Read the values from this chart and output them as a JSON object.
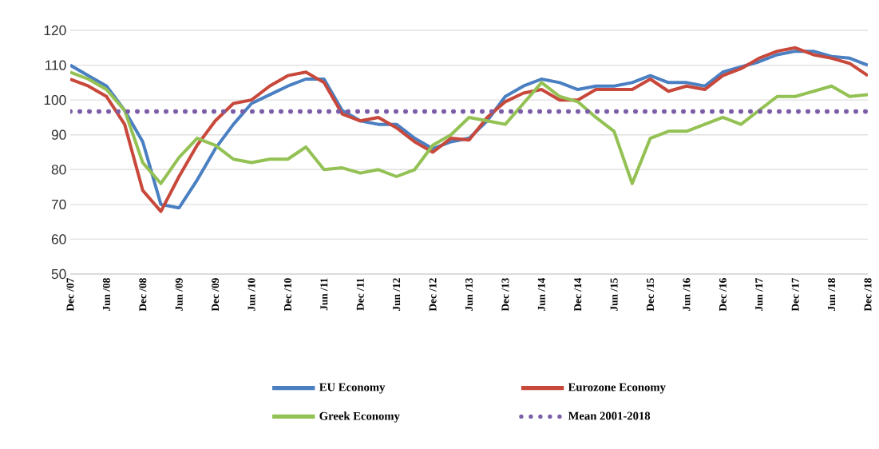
{
  "chart_data": {
    "type": "line",
    "categories": [
      "Dec /07",
      null,
      "Jun /08",
      null,
      "Dec /08",
      null,
      "Jun /09",
      null,
      "Dec /09",
      null,
      "Jun /10",
      null,
      "Dec /10",
      null,
      "Jun /11",
      null,
      "Dec /11",
      null,
      "Jun /12",
      null,
      "Dec /12",
      null,
      "Jun /13",
      null,
      "Dec /13",
      null,
      "Jun /14",
      null,
      "Dec /14",
      null,
      "Jun /15",
      null,
      "Dec /15",
      null,
      "Jun /16",
      null,
      "Dec /16",
      null,
      "Jun /17",
      null,
      "Dec /17",
      null,
      "Jun /18",
      null,
      "Dec /18"
    ],
    "series": [
      {
        "name": "EU Economy",
        "color": "#4a7fc1",
        "values": [
          110,
          107,
          104,
          97,
          88,
          70,
          69,
          77,
          86,
          93,
          99,
          101.5,
          104,
          106,
          106,
          97,
          94,
          93,
          93,
          89,
          86,
          88,
          89,
          94,
          101,
          104,
          106,
          105,
          103,
          104,
          104,
          105,
          107,
          105,
          105,
          104,
          108,
          109.5,
          111,
          113,
          114,
          114,
          112.5,
          112,
          110
        ]
      },
      {
        "name": "Eurozone Economy",
        "color": "#c8483b",
        "values": [
          106,
          104,
          101,
          93,
          74,
          68,
          78,
          87,
          94,
          99,
          100,
          104,
          107,
          108,
          105,
          96,
          94,
          95,
          92,
          88,
          85,
          89,
          88.5,
          95,
          99.5,
          102,
          103,
          100,
          100,
          103,
          103,
          103,
          106,
          102.5,
          104,
          103,
          107,
          109,
          112,
          114,
          115,
          113,
          112,
          110.5,
          107
        ]
      },
      {
        "name": "Greek Economy",
        "color": "#93c153",
        "values": [
          108,
          106,
          103,
          97,
          82,
          76,
          83.5,
          89,
          87,
          83,
          82,
          83,
          83,
          86.5,
          80,
          80.5,
          79,
          80,
          78,
          80,
          87,
          90,
          95,
          94,
          93,
          99,
          105,
          101,
          99.5,
          95,
          91,
          76,
          89,
          91,
          91,
          93,
          95,
          93,
          97,
          101,
          101,
          102.5,
          104,
          101,
          101.5
        ]
      }
    ],
    "ref_lines": [
      {
        "axis": "y",
        "value": 96.7,
        "label": "Mean 2001-2018",
        "color": "#7b5ea7",
        "line_style": "dotted"
      }
    ],
    "ylim": [
      50,
      120
    ],
    "yticks": [
      50,
      60,
      70,
      80,
      90,
      100,
      110,
      120
    ],
    "grid": "y",
    "legend": "bottom",
    "marker": "none",
    "line_style": "solid"
  }
}
